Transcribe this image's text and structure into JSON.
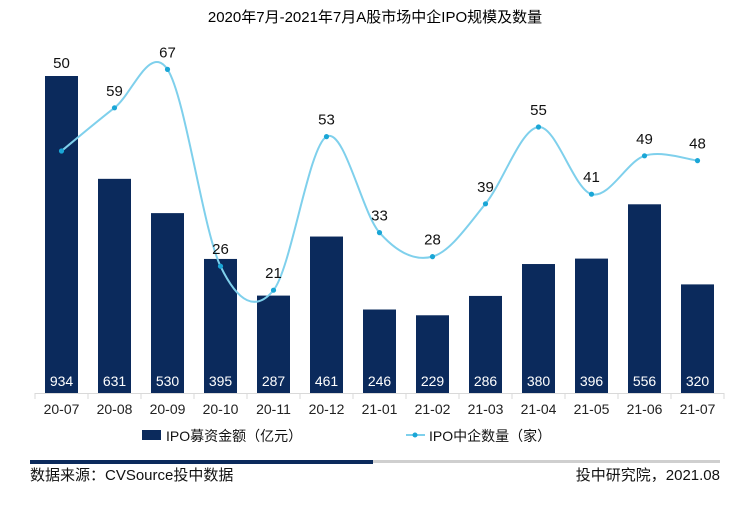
{
  "chart_data": {
    "type": "bar+line",
    "title": "2020年7月-2021年7月A股市场中企IPO规模及数量",
    "categories": [
      "20-07",
      "20-08",
      "20-09",
      "20-10",
      "20-11",
      "20-12",
      "21-01",
      "21-02",
      "21-03",
      "21-04",
      "21-05",
      "21-06",
      "21-07"
    ],
    "series": [
      {
        "name": "IPO募资金额（亿元）",
        "type": "bar",
        "color": "#0b2a5c",
        "values": [
          934,
          631,
          530,
          395,
          287,
          461,
          246,
          229,
          286,
          380,
          396,
          556,
          320
        ]
      },
      {
        "name": "IPO中企数量（家）",
        "type": "line",
        "color": "#7fd0ec",
        "marker_color": "#1aa6d6",
        "values": [
          50,
          59,
          67,
          26,
          21,
          53,
          33,
          28,
          39,
          55,
          41,
          49,
          48
        ]
      }
    ],
    "xlabel": "",
    "ylabel": "",
    "legend_position": "bottom",
    "grid": false
  },
  "footer": {
    "source": "数据来源：CVSource投中数据",
    "credit": "投中研究院，2021.08"
  }
}
